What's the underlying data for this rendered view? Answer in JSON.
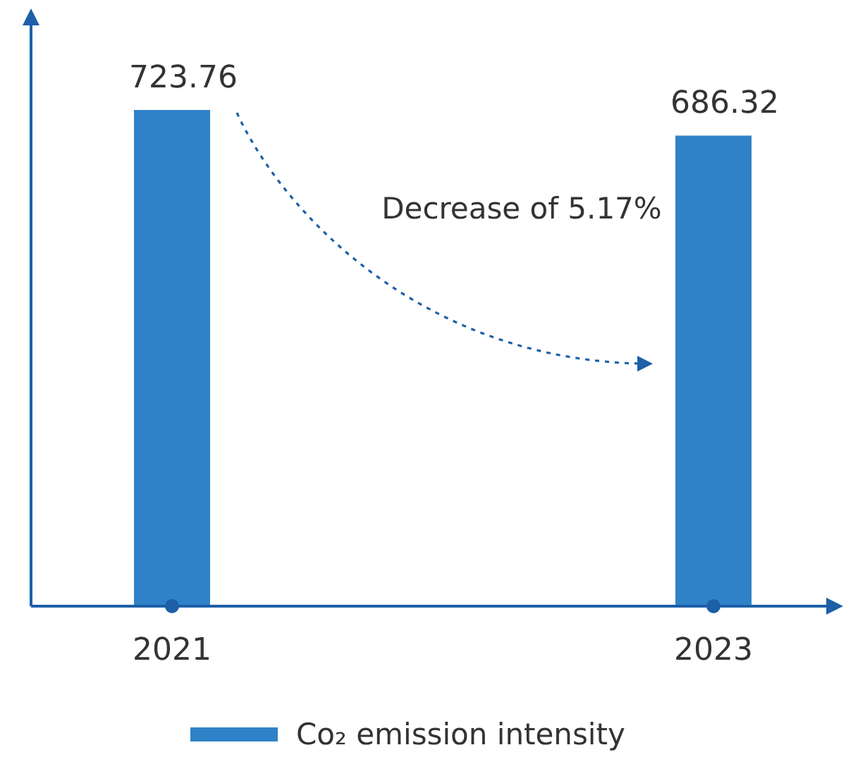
{
  "chart_data": {
    "type": "bar",
    "categories": [
      "2021",
      "2023"
    ],
    "series": [
      {
        "name": "Co₂ emission intensity",
        "color": "#2f82c8",
        "values": [
          723.76,
          686.32
        ]
      }
    ],
    "tick_labels": "x",
    "data_labels": true,
    "legend": "bottom",
    "annotations": [
      "Decrease of 5.17%"
    ]
  }
}
